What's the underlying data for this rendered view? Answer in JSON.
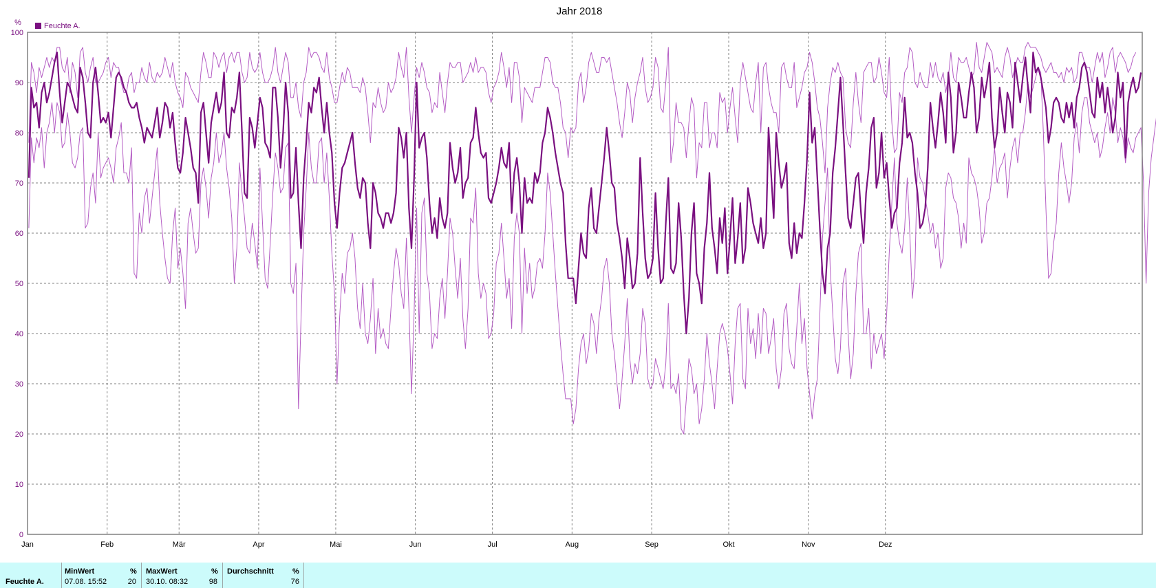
{
  "chart_data": {
    "type": "line",
    "title": "Jahr 2018",
    "yunit": "%",
    "ylim": [
      0,
      100
    ],
    "yticks": [
      0,
      10,
      20,
      30,
      40,
      50,
      60,
      70,
      80,
      90,
      100
    ],
    "x_start": "01.01.2018",
    "x_end": "31.12.2018",
    "month_labels": [
      "Jan",
      "Feb",
      "Mär",
      "Apr",
      "Mai",
      "Jun",
      "Jul",
      "Aug",
      "Sep",
      "Okt",
      "Nov",
      "Dez"
    ],
    "grid": true,
    "legend": [
      {
        "label": "Feuchte A.",
        "color": "#7a1080"
      }
    ],
    "colors": {
      "avg": "#7a1080",
      "minmax": "#b45cc4",
      "axis": "#000000",
      "grid": "#808080"
    },
    "series": [
      {
        "name": "Feuchte A.",
        "role": "average",
        "values": [
          71,
          89,
          85,
          86,
          81,
          88,
          90,
          86,
          88,
          91,
          94,
          96,
          88,
          82,
          86,
          90,
          89,
          87,
          85,
          84,
          93,
          91,
          86,
          80,
          79,
          90,
          93,
          88,
          82,
          83,
          82,
          84,
          79,
          85,
          91,
          92,
          91,
          89,
          88,
          86,
          85,
          85,
          86,
          83,
          81,
          78,
          81,
          80,
          79,
          82,
          85,
          79,
          82,
          86,
          85,
          81,
          84,
          78,
          73,
          72,
          76,
          83,
          80,
          77,
          73,
          72,
          66,
          84,
          86,
          80,
          74,
          82,
          85,
          88,
          84,
          86,
          92,
          80,
          79,
          85,
          84,
          87,
          92,
          80,
          68,
          67,
          83,
          81,
          77,
          82,
          87,
          85,
          78,
          77,
          75,
          89,
          89,
          83,
          73,
          80,
          90,
          84,
          67,
          68,
          77,
          66,
          57,
          71,
          78,
          86,
          84,
          89,
          88,
          91,
          85,
          80,
          86,
          80,
          76,
          66,
          61,
          68,
          73,
          74,
          76,
          78,
          80,
          74,
          69,
          67,
          71,
          70,
          62,
          57,
          70,
          68,
          64,
          63,
          61,
          64,
          64,
          62,
          64,
          68,
          81,
          79,
          75,
          80,
          65,
          57,
          71,
          90,
          77,
          79,
          80,
          75,
          66,
          60,
          63,
          59,
          67,
          63,
          61,
          64,
          78,
          73,
          70,
          72,
          77,
          67,
          70,
          71,
          78,
          79,
          85,
          80,
          76,
          75,
          76,
          67,
          66,
          68,
          70,
          73,
          77,
          74,
          73,
          78,
          64,
          72,
          75,
          70,
          60,
          71,
          66,
          67,
          66,
          72,
          70,
          72,
          78,
          80,
          85,
          83,
          80,
          76,
          73,
          70,
          68,
          58,
          51,
          51,
          51,
          46,
          53,
          60,
          56,
          55,
          65,
          69,
          61,
          60,
          65,
          70,
          75,
          81,
          76,
          70,
          69,
          62,
          59,
          55,
          49,
          59,
          55,
          49,
          50,
          56,
          75,
          64,
          55,
          51,
          52,
          55,
          68,
          57,
          50,
          51,
          62,
          71,
          53,
          52,
          54,
          66,
          59,
          48,
          40,
          47,
          60,
          66,
          52,
          50,
          46,
          57,
          62,
          72,
          61,
          57,
          52,
          63,
          58,
          65,
          52,
          59,
          67,
          54,
          59,
          66,
          54,
          57,
          69,
          66,
          62,
          60,
          58,
          63,
          57,
          60,
          81,
          72,
          63,
          80,
          74,
          69,
          71,
          74,
          58,
          55,
          62,
          56,
          60,
          59,
          66,
          75,
          88,
          78,
          81,
          71,
          61,
          52,
          48,
          57,
          60,
          72,
          77,
          84,
          91,
          82,
          72,
          63,
          61,
          66,
          71,
          72,
          64,
          58,
          68,
          73,
          81,
          83,
          69,
          72,
          80,
          71,
          74,
          67,
          61,
          64,
          65,
          74,
          78,
          87,
          79,
          80,
          78,
          72,
          68,
          61,
          62,
          65,
          73,
          86,
          81,
          77,
          82,
          88,
          84,
          78,
          92,
          87,
          76,
          80,
          90,
          87,
          83,
          83,
          88,
          92,
          89,
          80,
          83,
          91,
          87,
          90,
          94,
          83,
          77,
          80,
          89,
          84,
          80,
          88,
          86,
          81,
          94,
          90,
          86,
          91,
          95,
          89,
          84,
          96,
          92,
          93,
          91,
          88,
          85,
          78,
          81,
          86,
          87,
          86,
          83,
          82,
          86,
          83,
          86,
          81,
          87,
          89,
          93,
          94,
          92,
          88,
          84,
          83,
          91,
          87,
          90,
          84,
          89,
          85,
          80,
          83,
          92,
          87,
          90,
          75,
          86,
          89,
          91,
          88,
          89,
          92
        ]
      },
      {
        "name": "Feuchte A. Max",
        "role": "maximum",
        "values": [
          78,
          94,
          92,
          88,
          93,
          91,
          93,
          95,
          93,
          95,
          94,
          97,
          97,
          93,
          92,
          95,
          88,
          94,
          92,
          87,
          96,
          97,
          92,
          90,
          93,
          95,
          90,
          90,
          91,
          92,
          94,
          95,
          91,
          94,
          93,
          93,
          90,
          88,
          88,
          91,
          92,
          88,
          90,
          90,
          93,
          91,
          90,
          94,
          91,
          90,
          92,
          91,
          92,
          95,
          93,
          91,
          94,
          90,
          88,
          87,
          85,
          92,
          91,
          89,
          88,
          87,
          86,
          92,
          96,
          94,
          91,
          91,
          96,
          95,
          93,
          95,
          96,
          92,
          95,
          96,
          94,
          96,
          96,
          92,
          90,
          91,
          96,
          93,
          92,
          93,
          96,
          92,
          90,
          90,
          91,
          93,
          97,
          92,
          90,
          93,
          96,
          94,
          87,
          87,
          90,
          85,
          83,
          90,
          92,
          97,
          95,
          96,
          96,
          95,
          93,
          92,
          96,
          91,
          89,
          86,
          86,
          89,
          92,
          90,
          93,
          92,
          89,
          89,
          89,
          88,
          91,
          89,
          84,
          78,
          86,
          85,
          89,
          86,
          84,
          85,
          90,
          88,
          89,
          91,
          96,
          93,
          91,
          97,
          87,
          80,
          87,
          93,
          91,
          94,
          92,
          89,
          88,
          84,
          86,
          85,
          92,
          88,
          84,
          90,
          94,
          93,
          93,
          94,
          94,
          90,
          91,
          92,
          94,
          92,
          95,
          92,
          93,
          93,
          92,
          88,
          86,
          89,
          90,
          92,
          96,
          93,
          89,
          93,
          86,
          94,
          94,
          91,
          82,
          89,
          88,
          87,
          86,
          89,
          89,
          89,
          92,
          95,
          95,
          94,
          90,
          89,
          89,
          86,
          81,
          80,
          75,
          81,
          80,
          81,
          90,
          92,
          86,
          89,
          94,
          96,
          94,
          92,
          92,
          95,
          95,
          94,
          95,
          92,
          89,
          86,
          82,
          79,
          84,
          90,
          88,
          82,
          87,
          90,
          92,
          95,
          89,
          86,
          87,
          89,
          95,
          93,
          85,
          84,
          90,
          97,
          74,
          78,
          86,
          82,
          82,
          81,
          75,
          82,
          87,
          85,
          71,
          78,
          77,
          86,
          86,
          77,
          80,
          80,
          77,
          88,
          86,
          87,
          80,
          85,
          89,
          83,
          78,
          90,
          94,
          91,
          88,
          85,
          84,
          90,
          94,
          80,
          93,
          94,
          89,
          86,
          84,
          84,
          80,
          93,
          94,
          91,
          89,
          89,
          94,
          85,
          87,
          89,
          92,
          93,
          96,
          94,
          90,
          85,
          83,
          78,
          72,
          85,
          90,
          93,
          92,
          94,
          92,
          91,
          81,
          78,
          77,
          86,
          92,
          86,
          82,
          92,
          93,
          94,
          94,
          90,
          91,
          95,
          92,
          88,
          87,
          95,
          82,
          76,
          77,
          88,
          86,
          92,
          93,
          97,
          96,
          90,
          89,
          92,
          90,
          89,
          89,
          94,
          91,
          94,
          91,
          90,
          92,
          88,
          91,
          96,
          91,
          90,
          95,
          94,
          94,
          95,
          93,
          91,
          92,
          98,
          93,
          92,
          95,
          98,
          97,
          96,
          92,
          93,
          92,
          91,
          95,
          97,
          95,
          91,
          93,
          95,
          94,
          94,
          97,
          98,
          97,
          97,
          97,
          96,
          95,
          93,
          92,
          93,
          94,
          92,
          92,
          91,
          92,
          90,
          93,
          92,
          93,
          90,
          91,
          96,
          96,
          94,
          93,
          93,
          90,
          93,
          96,
          94,
          96,
          91,
          93,
          96,
          97,
          92,
          95,
          96,
          95,
          94,
          92,
          93,
          95,
          96
        ]
      },
      {
        "name": "Feuchte A. Min",
        "role": "minimum",
        "values": [
          61,
          79,
          74,
          79,
          77,
          81,
          73,
          80,
          82,
          86,
          80,
          86,
          84,
          77,
          78,
          84,
          80,
          74,
          73,
          75,
          80,
          81,
          61,
          62,
          69,
          72,
          66,
          80,
          71,
          73,
          74,
          75,
          73,
          70,
          77,
          79,
          82,
          72,
          72,
          70,
          77,
          52,
          51,
          64,
          60,
          67,
          69,
          62,
          67,
          72,
          77,
          66,
          60,
          55,
          51,
          50,
          60,
          65,
          53,
          57,
          52,
          45,
          62,
          65,
          60,
          56,
          57,
          70,
          73,
          69,
          63,
          71,
          74,
          80,
          74,
          76,
          80,
          73,
          69,
          63,
          50,
          57,
          74,
          68,
          63,
          57,
          56,
          62,
          58,
          53,
          73,
          62,
          51,
          49,
          58,
          68,
          76,
          73,
          68,
          69,
          77,
          78,
          50,
          48,
          54,
          25,
          43,
          60,
          69,
          80,
          73,
          70,
          70,
          78,
          79,
          70,
          76,
          67,
          56,
          48,
          30,
          43,
          52,
          48,
          56,
          57,
          60,
          55,
          45,
          41,
          50,
          40,
          38,
          43,
          51,
          36,
          45,
          39,
          41,
          38,
          37,
          45,
          52,
          57,
          54,
          48,
          45,
          59,
          45,
          28,
          44,
          65,
          40,
          64,
          67,
          52,
          48,
          37,
          40,
          39,
          47,
          51,
          43,
          52,
          63,
          60,
          53,
          47,
          55,
          43,
          37,
          45,
          63,
          62,
          69,
          52,
          47,
          50,
          48,
          39,
          40,
          44,
          54,
          56,
          62,
          55,
          47,
          51,
          41,
          59,
          64,
          60,
          40,
          57,
          48,
          54,
          47,
          49,
          54,
          55,
          53,
          60,
          72,
          68,
          60,
          52,
          45,
          38,
          32,
          27,
          27,
          27,
          22,
          25,
          33,
          38,
          40,
          34,
          37,
          44,
          42,
          36,
          43,
          47,
          53,
          55,
          50,
          40,
          36,
          30,
          25,
          31,
          38,
          47,
          35,
          30,
          34,
          32,
          36,
          45,
          42,
          31,
          29,
          30,
          35,
          33,
          31,
          29,
          34,
          46,
          29,
          30,
          28,
          32,
          21,
          20,
          27,
          35,
          33,
          28,
          30,
          22,
          25,
          31,
          40,
          34,
          30,
          25,
          33,
          40,
          42,
          40,
          37,
          32,
          26,
          38,
          45,
          46,
          31,
          29,
          45,
          38,
          41,
          35,
          44,
          36,
          45,
          44,
          36,
          39,
          43,
          33,
          29,
          33,
          44,
          46,
          37,
          34,
          33,
          41,
          50,
          38,
          43,
          33,
          28,
          23,
          28,
          31,
          44,
          59,
          66,
          73,
          53,
          44,
          35,
          32,
          37,
          50,
          53,
          40,
          31,
          36,
          48,
          56,
          58,
          40,
          40,
          45,
          33,
          40,
          36,
          38,
          40,
          35,
          44,
          56,
          66,
          75,
          62,
          58,
          56,
          61,
          71,
          60,
          47,
          53,
          75,
          71,
          70,
          67,
          64,
          60,
          62,
          57,
          60,
          53,
          55,
          69,
          72,
          71,
          67,
          66,
          63,
          57,
          62,
          58,
          75,
          72,
          71,
          69,
          65,
          58,
          60,
          66,
          67,
          71,
          77,
          70,
          73,
          74,
          76,
          67,
          73,
          77,
          79,
          74,
          80,
          80,
          84,
          90,
          87,
          89,
          91,
          93,
          92,
          80,
          65,
          51,
          52,
          58,
          62,
          72,
          78,
          73,
          70,
          66,
          70,
          79,
          82,
          76,
          84,
          87,
          87,
          82,
          80,
          78,
          80,
          75,
          77,
          81,
          84,
          80,
          87,
          84,
          78,
          81,
          79,
          74,
          79,
          77,
          76,
          79,
          80,
          81,
          70,
          50,
          68,
          75,
          79,
          83
        ]
      }
    ]
  },
  "stats_table": {
    "row_label": "Feuchte A.",
    "min": {
      "header": "MinWert",
      "unit": "%",
      "when": "07.08. 15:52",
      "value": "20"
    },
    "max": {
      "header": "MaxWert",
      "unit": "%",
      "when": "30.10. 08:32",
      "value": "98"
    },
    "avg": {
      "header": "Durchschnitt",
      "unit": "%",
      "value": "76"
    }
  }
}
